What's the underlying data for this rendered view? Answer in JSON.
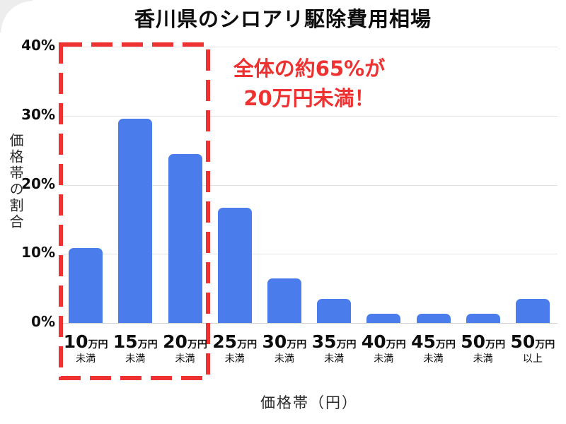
{
  "title": "香川県のシロアリ駆除費用相場",
  "annotation": {
    "line1": "全体の約65%が",
    "line2": "20万円未満！",
    "color": "#ee3232"
  },
  "highlight": {
    "description": "red dashed box around first three categories",
    "color": "#ee3232"
  },
  "colors": {
    "bar": "#4a7cec",
    "grid": "#e3e3e3",
    "baseline": "#d2d2d2",
    "text": "#0d0d0d",
    "accent_red": "#ee3232"
  },
  "chart_data": {
    "type": "bar",
    "title": "香川県のシロアリ駆除費用相場",
    "xlabel": "価格帯（円）",
    "ylabel": "価格帯の割合",
    "ylim": [
      0,
      40
    ],
    "grid": true,
    "legend": "none",
    "categories": [
      "10万円未満",
      "15万円未満",
      "20万円未満",
      "25万円未満",
      "30万円未満",
      "35万円未満",
      "40万円未満",
      "45万円未満",
      "50万円未満",
      "50万円以上"
    ],
    "values": [
      10.8,
      29.6,
      24.4,
      16.7,
      6.4,
      3.5,
      1.3,
      1.3,
      1.3,
      3.5
    ],
    "bar_color": "#4a7cec",
    "y_ticks": [
      {
        "value": 0,
        "label": "0%"
      },
      {
        "value": 10,
        "label": "10%"
      },
      {
        "value": 20,
        "label": "20%"
      },
      {
        "value": 30,
        "label": "30%"
      },
      {
        "value": 40,
        "label": "40%"
      }
    ],
    "x_ticks": [
      {
        "num": "10",
        "unit": "万円",
        "sub": "未満"
      },
      {
        "num": "15",
        "unit": "万円",
        "sub": "未満"
      },
      {
        "num": "20",
        "unit": "万円",
        "sub": "未満"
      },
      {
        "num": "25",
        "unit": "万円",
        "sub": "未満"
      },
      {
        "num": "30",
        "unit": "万円",
        "sub": "未満"
      },
      {
        "num": "35",
        "unit": "万円",
        "sub": "未満"
      },
      {
        "num": "40",
        "unit": "万円",
        "sub": "未満"
      },
      {
        "num": "45",
        "unit": "万円",
        "sub": "未満"
      },
      {
        "num": "50",
        "unit": "万円",
        "sub": "未満"
      },
      {
        "num": "50",
        "unit": "万円",
        "sub": "以上"
      }
    ]
  }
}
